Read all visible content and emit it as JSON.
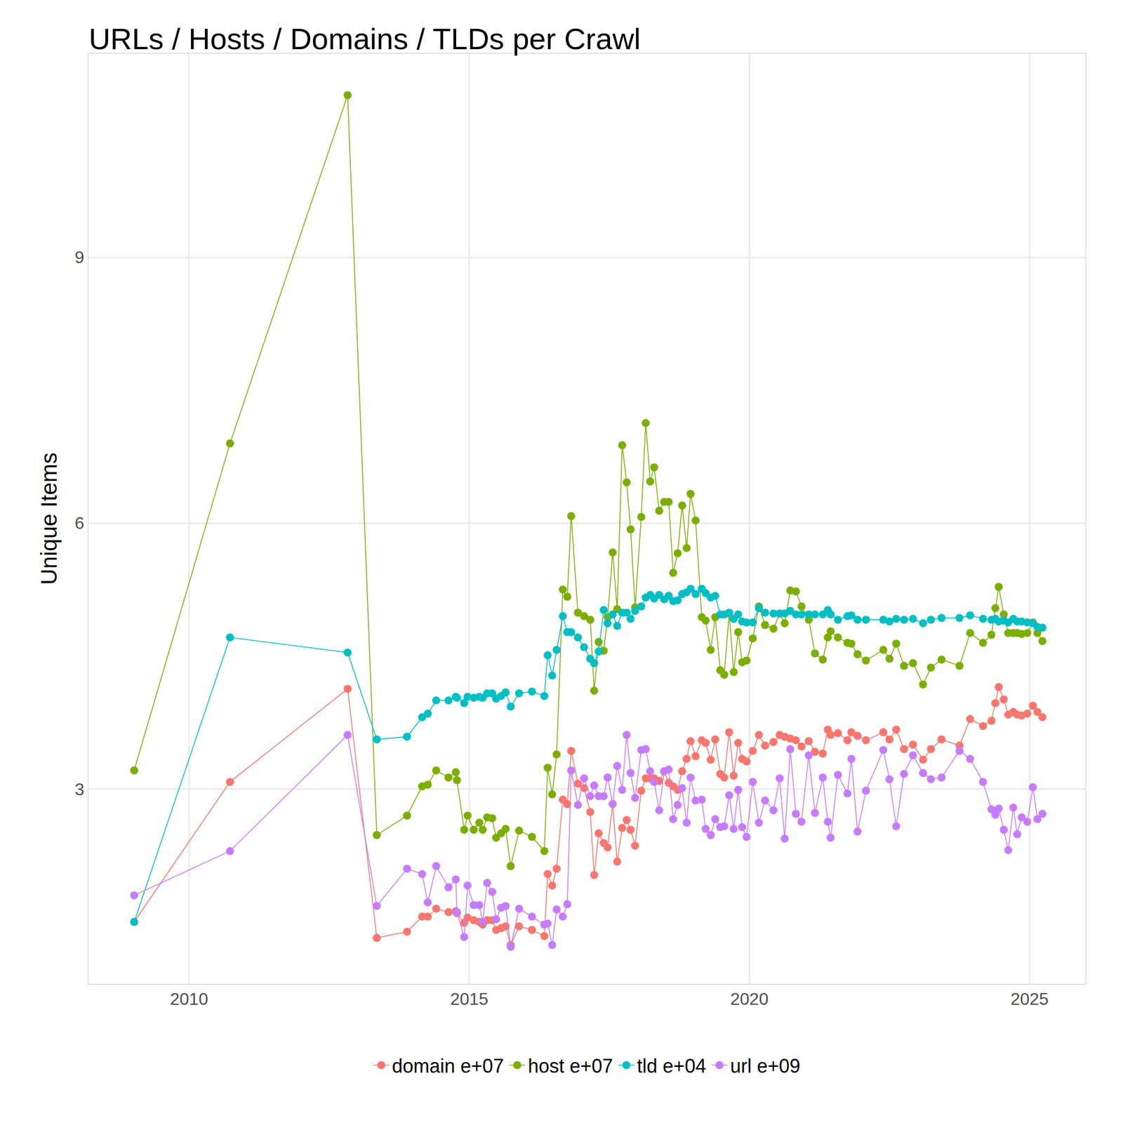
{
  "chart_data": {
    "type": "line",
    "title": "URLs / Hosts / Domains / TLDs per Crawl",
    "y_label": "Unique Items",
    "x": [
      2009.02,
      2010.73,
      2012.83,
      2013.35,
      2013.89,
      2014.16,
      2014.26,
      2014.41,
      2014.63,
      2014.76,
      2014.78,
      2014.91,
      2014.97,
      2015.08,
      2015.18,
      2015.24,
      2015.32,
      2015.41,
      2015.48,
      2015.57,
      2015.65,
      2015.74,
      2015.89,
      2016.12,
      2016.34,
      2016.4,
      2016.48,
      2016.56,
      2016.67,
      2016.75,
      2016.82,
      2016.94,
      2017.05,
      2017.16,
      2017.23,
      2017.31,
      2017.4,
      2017.47,
      2017.56,
      2017.64,
      2017.73,
      2017.81,
      2017.88,
      2017.96,
      2018.07,
      2018.15,
      2018.23,
      2018.3,
      2018.39,
      2018.48,
      2018.56,
      2018.64,
      2018.72,
      2018.8,
      2018.88,
      2018.95,
      2019.04,
      2019.15,
      2019.22,
      2019.31,
      2019.39,
      2019.48,
      2019.55,
      2019.64,
      2019.72,
      2019.8,
      2019.87,
      2019.95,
      2020.06,
      2020.17,
      2020.28,
      2020.43,
      2020.54,
      2020.63,
      2020.73,
      2020.83,
      2020.93,
      2021.06,
      2021.17,
      2021.31,
      2021.4,
      2021.45,
      2021.58,
      2021.75,
      2021.82,
      2021.93,
      2022.08,
      2022.39,
      2022.5,
      2022.62,
      2022.76,
      2022.92,
      2023.1,
      2023.24,
      2023.43,
      2023.75,
      2023.94,
      2024.17,
      2024.32,
      2024.39,
      2024.45,
      2024.54,
      2024.62,
      2024.71,
      2024.78,
      2024.86,
      2024.96,
      2025.06,
      2025.14,
      2025.23
    ],
    "series": [
      {
        "name": "domain e+07",
        "color": "#F8766D",
        "values": [
          1.5,
          3.08,
          4.13,
          1.32,
          1.39,
          1.56,
          1.56,
          1.65,
          1.61,
          1.62,
          1.6,
          1.49,
          1.55,
          1.52,
          1.5,
          1.47,
          1.52,
          1.52,
          1.41,
          1.43,
          1.45,
          1.24,
          1.45,
          1.41,
          1.34,
          2.04,
          1.91,
          2.1,
          2.88,
          2.83,
          3.43,
          3.06,
          3.01,
          2.74,
          2.03,
          2.5,
          2.39,
          2.34,
          2.83,
          2.18,
          2.56,
          2.65,
          2.54,
          2.36,
          2.98,
          3.12,
          3.12,
          3.12,
          3.09,
          3.2,
          3.07,
          3.03,
          2.99,
          3.2,
          3.34,
          3.54,
          3.37,
          3.55,
          3.52,
          3.33,
          3.56,
          3.17,
          3.13,
          3.64,
          3.15,
          3.52,
          3.34,
          3.31,
          3.43,
          3.61,
          3.49,
          3.53,
          3.61,
          3.59,
          3.57,
          3.55,
          3.48,
          3.54,
          3.42,
          3.4,
          3.67,
          3.61,
          3.63,
          3.55,
          3.64,
          3.6,
          3.55,
          3.64,
          3.56,
          3.67,
          3.45,
          3.5,
          3.33,
          3.45,
          3.56,
          3.49,
          3.79,
          3.71,
          3.77,
          3.97,
          4.15,
          4.01,
          3.84,
          3.87,
          3.84,
          3.83,
          3.85,
          3.94,
          3.87,
          3.81
        ]
      },
      {
        "name": "host e+07",
        "color": "#7CAE00",
        "values": [
          3.21,
          6.9,
          10.83,
          2.48,
          2.7,
          3.03,
          3.05,
          3.21,
          3.13,
          3.19,
          3.1,
          2.54,
          2.7,
          2.54,
          2.62,
          2.54,
          2.68,
          2.67,
          2.45,
          2.5,
          2.55,
          2.13,
          2.53,
          2.46,
          2.3,
          3.24,
          2.94,
          3.39,
          5.25,
          5.17,
          6.08,
          4.99,
          4.95,
          4.91,
          4.11,
          4.66,
          4.56,
          4.94,
          5.67,
          5.03,
          6.88,
          6.46,
          5.93,
          5.05,
          6.07,
          7.13,
          6.47,
          6.63,
          6.14,
          6.24,
          6.24,
          5.44,
          5.66,
          6.2,
          5.72,
          6.33,
          6.03,
          4.94,
          4.9,
          4.57,
          4.94,
          4.34,
          4.29,
          4.98,
          4.32,
          4.77,
          4.43,
          4.45,
          4.7,
          5.06,
          4.85,
          4.81,
          4.98,
          4.87,
          5.24,
          5.23,
          5.06,
          4.91,
          4.53,
          4.46,
          4.71,
          4.78,
          4.71,
          4.65,
          4.64,
          4.52,
          4.45,
          4.57,
          4.47,
          4.64,
          4.39,
          4.42,
          4.18,
          4.37,
          4.46,
          4.39,
          4.76,
          4.65,
          4.74,
          5.04,
          5.28,
          4.97,
          4.76,
          4.76,
          4.76,
          4.75,
          4.76,
          4.88,
          4.76,
          4.67
        ]
      },
      {
        "name": "tld e+04",
        "color": "#00BFC4",
        "values": [
          1.5,
          4.71,
          4.54,
          3.56,
          3.59,
          3.81,
          3.85,
          4.0,
          4.0,
          4.04,
          4.03,
          3.97,
          4.04,
          4.03,
          4.04,
          4.03,
          4.08,
          4.08,
          4.02,
          4.05,
          4.09,
          3.93,
          4.08,
          4.1,
          4.05,
          4.51,
          4.28,
          4.57,
          4.95,
          4.77,
          4.77,
          4.71,
          4.6,
          4.47,
          4.42,
          4.55,
          5.02,
          4.87,
          4.97,
          4.84,
          4.99,
          4.99,
          4.92,
          5.01,
          5.06,
          5.16,
          5.19,
          5.15,
          5.19,
          5.14,
          5.18,
          5.12,
          5.13,
          5.2,
          5.22,
          5.26,
          5.2,
          5.26,
          5.21,
          5.16,
          5.18,
          4.97,
          4.97,
          4.99,
          4.92,
          4.97,
          4.89,
          4.88,
          4.88,
          5.04,
          4.99,
          4.98,
          4.98,
          4.98,
          5.01,
          4.97,
          4.97,
          4.97,
          4.97,
          4.97,
          5.02,
          4.97,
          4.91,
          4.95,
          4.96,
          4.91,
          4.91,
          4.91,
          4.89,
          4.92,
          4.91,
          4.92,
          4.87,
          4.91,
          4.93,
          4.93,
          4.96,
          4.92,
          4.91,
          4.92,
          4.89,
          4.9,
          4.88,
          4.92,
          4.89,
          4.89,
          4.88,
          4.87,
          4.83,
          4.82
        ]
      },
      {
        "name": "url e+09",
        "color": "#C77CFF",
        "values": [
          1.8,
          2.3,
          3.61,
          1.68,
          2.1,
          2.04,
          1.72,
          2.13,
          1.89,
          1.98,
          1.61,
          1.33,
          1.91,
          1.69,
          1.69,
          1.5,
          1.94,
          1.84,
          1.53,
          1.66,
          1.68,
          1.22,
          1.65,
          1.56,
          1.47,
          1.48,
          1.24,
          1.64,
          1.56,
          1.7,
          3.21,
          2.82,
          3.12,
          2.92,
          3.04,
          2.92,
          2.92,
          3.13,
          2.83,
          3.26,
          2.99,
          3.61,
          3.18,
          2.9,
          3.44,
          3.45,
          3.2,
          3.08,
          2.76,
          3.2,
          3.22,
          2.66,
          2.82,
          3.01,
          2.62,
          3.13,
          2.87,
          2.88,
          2.55,
          2.48,
          2.66,
          2.57,
          2.58,
          2.93,
          2.55,
          2.99,
          2.57,
          2.46,
          3.08,
          2.62,
          2.87,
          2.76,
          3.12,
          2.44,
          3.45,
          2.72,
          2.63,
          3.38,
          2.73,
          3.13,
          2.63,
          2.45,
          3.16,
          2.95,
          3.34,
          2.52,
          2.98,
          3.44,
          3.11,
          2.58,
          3.17,
          3.38,
          3.18,
          3.11,
          3.13,
          3.43,
          3.34,
          3.08,
          2.77,
          2.71,
          2.78,
          2.54,
          2.31,
          2.79,
          2.49,
          2.68,
          2.63,
          3.02,
          2.66,
          2.72
        ]
      }
    ],
    "xlim": [
      2008.2,
      2026.0
    ],
    "xticks": [
      2010,
      2015,
      2020,
      2025
    ],
    "ylim": [
      0.8,
      11.3
    ],
    "yticks": [
      3,
      6,
      9
    ],
    "grid": true,
    "legend": "bottom",
    "marker": "circle",
    "line_style": "solid"
  }
}
